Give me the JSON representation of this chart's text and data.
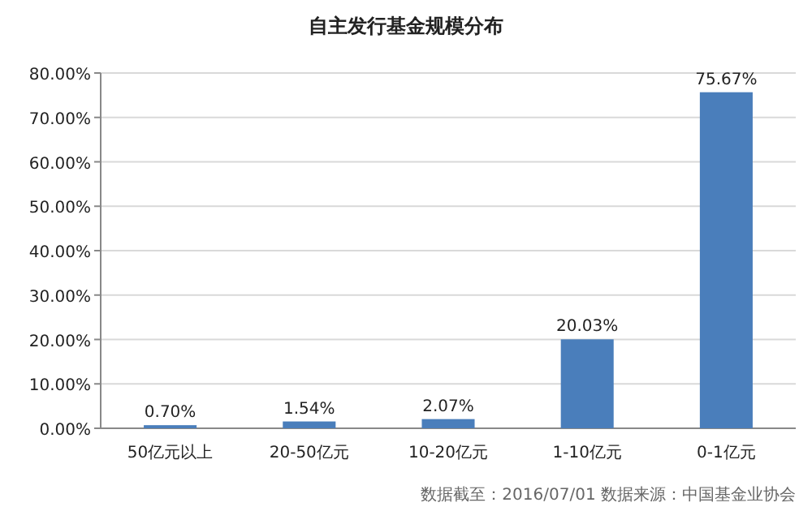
{
  "chart_data": {
    "type": "bar",
    "title": "自主发行基金规模分布",
    "categories": [
      "50亿元以上",
      "20-50亿元",
      "10-20亿元",
      "1-10亿元",
      "0-1亿元"
    ],
    "values": [
      0.7,
      1.54,
      2.07,
      20.03,
      75.67
    ],
    "value_labels": [
      "0.70%",
      "1.54%",
      "2.07%",
      "20.03%",
      "75.67%"
    ],
    "color": "#4a7ebb",
    "ylim": [
      0,
      80
    ],
    "yticks": [
      {
        "value": 0,
        "label": "0.00%"
      },
      {
        "value": 10,
        "label": "10.00%"
      },
      {
        "value": 20,
        "label": "20.00%"
      },
      {
        "value": 30,
        "label": "30.00%"
      },
      {
        "value": 40,
        "label": "40.00%"
      },
      {
        "value": 50,
        "label": "50.00%"
      },
      {
        "value": 60,
        "label": "60.00%"
      },
      {
        "value": 70,
        "label": "70.00%"
      },
      {
        "value": 80,
        "label": "80.00%"
      }
    ],
    "grid": "y",
    "annotations": [
      "数据截至：2016/07/01 数据来源：中国基金业协会"
    ]
  }
}
